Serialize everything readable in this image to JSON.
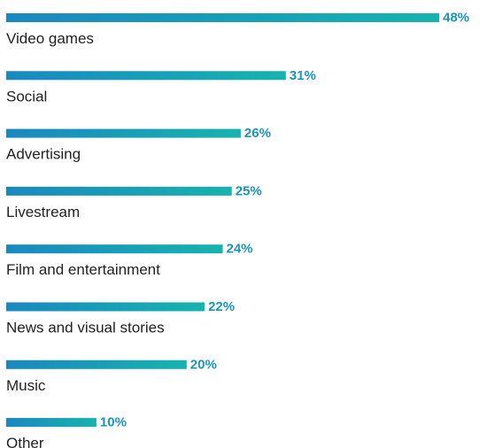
{
  "chart_data": {
    "type": "bar",
    "orientation": "horizontal",
    "categories": [
      "Video games",
      "Social",
      "Advertising",
      "Livestream",
      "Film and entertainment",
      "News and visual stories",
      "Music",
      "Other"
    ],
    "values": [
      48,
      31,
      26,
      25,
      24,
      22,
      20,
      10
    ],
    "value_labels": [
      "48%",
      "31%",
      "26%",
      "25%",
      "24%",
      "22%",
      "20%",
      "10%"
    ],
    "unit": "%",
    "xlim": [
      0,
      48
    ],
    "grid": false,
    "legend": "none",
    "colors": {
      "bar_start": "#1a88c0",
      "bar_end": "#17b3ae",
      "value_text": "#1a94b8",
      "category_text": "#222222"
    }
  }
}
